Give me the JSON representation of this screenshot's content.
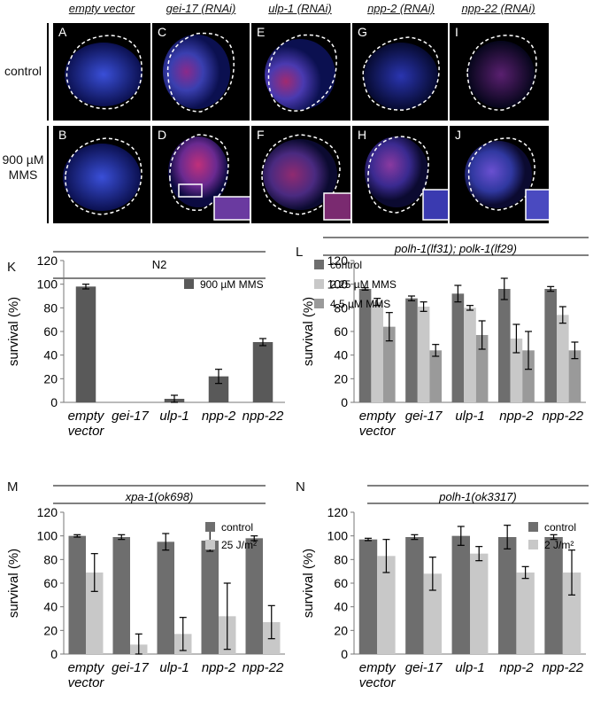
{
  "micrographs": {
    "columns": [
      "empty vector",
      "gei-17 (RNAi)",
      "ulp-1 (RNAi)",
      "npp-2 (RNAi)",
      "npp-22 (RNAi)"
    ],
    "rows": [
      "control",
      "900 µM MMS"
    ],
    "panel_letters": [
      [
        "A",
        "C",
        "E",
        "G",
        "I"
      ],
      [
        "B",
        "D",
        "F",
        "H",
        "J"
      ]
    ]
  },
  "chart_data": [
    {
      "panel": "K",
      "type": "bar",
      "title": "N2",
      "categories": [
        "empty vector",
        "gei-17",
        "ulp-1",
        "npp-2",
        "npp-22"
      ],
      "series": [
        {
          "name": "900 µM MMS",
          "color": "#595959",
          "values": [
            98,
            0,
            3,
            22,
            51
          ],
          "errors": [
            2,
            0,
            3,
            6,
            3
          ]
        }
      ],
      "ylabel": "survival (%)",
      "ylim": [
        0,
        120
      ],
      "yticks": [
        0,
        20,
        40,
        60,
        80,
        100,
        120
      ],
      "legend": "top-right"
    },
    {
      "panel": "L",
      "type": "bar",
      "title": "polh-1(lf31); polk-1(lf29)",
      "categories": [
        "empty vector",
        "gei-17",
        "ulp-1",
        "npp-2",
        "npp-22"
      ],
      "series": [
        {
          "name": "control",
          "color": "#6e6e6e",
          "values": [
            96,
            88,
            92,
            96,
            96
          ],
          "errors": [
            1,
            2,
            7,
            9,
            2
          ]
        },
        {
          "name": "2.25 µM MMS",
          "color": "#c8c8c8",
          "values": [
            85,
            81,
            80,
            54,
            74
          ],
          "errors": [
            3,
            4,
            2,
            12,
            7
          ]
        },
        {
          "name": "4.5 µM MMS",
          "color": "#9a9a9a",
          "values": [
            64,
            44,
            57,
            44,
            44
          ],
          "errors": [
            12,
            5,
            12,
            16,
            7
          ]
        }
      ],
      "ylabel": "survival (%)",
      "ylim": [
        0,
        120
      ],
      "yticks": [
        0,
        20,
        40,
        60,
        80,
        100,
        120
      ],
      "legend": "top-right"
    },
    {
      "panel": "M",
      "type": "bar",
      "title": "xpa-1(ok698)",
      "categories": [
        "empty vector",
        "gei-17",
        "ulp-1",
        "npp-2",
        "npp-22"
      ],
      "series": [
        {
          "name": "control",
          "color": "#6e6e6e",
          "values": [
            100,
            99,
            95,
            96,
            98
          ],
          "errors": [
            1,
            2,
            7,
            9,
            2
          ]
        },
        {
          "name": "25 J/m²",
          "color": "#c8c8c8",
          "values": [
            69,
            8,
            17,
            32,
            27
          ],
          "errors": [
            16,
            9,
            14,
            28,
            14
          ]
        }
      ],
      "ylabel": "survival (%)",
      "ylim": [
        0,
        120
      ],
      "yticks": [
        0,
        20,
        40,
        60,
        80,
        100,
        120
      ],
      "legend": "top-right"
    },
    {
      "panel": "N",
      "type": "bar",
      "title": "polh-1(ok3317)",
      "categories": [
        "empty vector",
        "gei-17",
        "ulp-1",
        "npp-2",
        "npp-22"
      ],
      "series": [
        {
          "name": "control",
          "color": "#6e6e6e",
          "values": [
            97,
            99,
            100,
            99,
            99
          ],
          "errors": [
            1,
            2,
            8,
            10,
            2
          ]
        },
        {
          "name": "2 J/m²",
          "color": "#c8c8c8",
          "values": [
            83,
            68,
            85,
            69,
            69
          ],
          "errors": [
            14,
            14,
            6,
            5,
            19
          ]
        }
      ],
      "ylabel": "survival (%)",
      "ylim": [
        0,
        120
      ],
      "yticks": [
        0,
        20,
        40,
        60,
        80,
        100,
        120
      ],
      "legend": "top-right"
    }
  ]
}
